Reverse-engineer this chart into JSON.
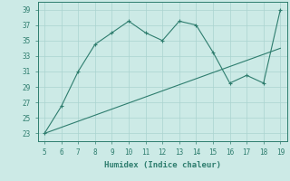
{
  "x": [
    5,
    6,
    7,
    8,
    9,
    10,
    11,
    12,
    13,
    14,
    15,
    16,
    17,
    18,
    19
  ],
  "y": [
    23,
    26.5,
    31,
    34.5,
    36,
    37.5,
    36,
    35,
    37.5,
    37,
    33.5,
    29.5,
    30.5,
    29.5,
    39
  ],
  "trend_x": [
    5,
    19
  ],
  "trend_y": [
    23,
    34
  ],
  "line_color": "#2e7d6e",
  "bg_color": "#cceae6",
  "grid_color": "#aad4d0",
  "xlabel": "Humidex (Indice chaleur)",
  "ylim": [
    22,
    40
  ],
  "yticks": [
    23,
    25,
    27,
    29,
    31,
    33,
    35,
    37,
    39
  ],
  "xticks": [
    5,
    6,
    7,
    8,
    9,
    10,
    11,
    12,
    13,
    14,
    15,
    16,
    17,
    18,
    19
  ],
  "label_fontsize": 6.5,
  "tick_fontsize": 5.5
}
